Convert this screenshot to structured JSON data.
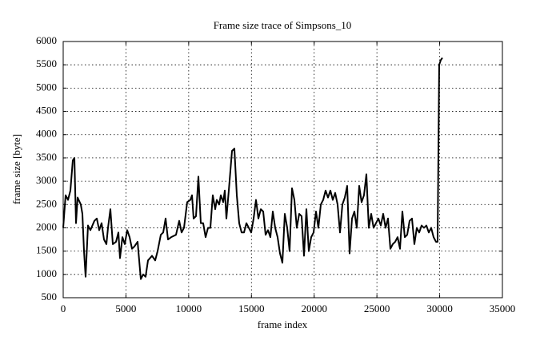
{
  "chart_data": {
    "type": "line",
    "title": "Frame size trace of Simpsons_10",
    "x_label": "frame index",
    "y_label": "frame size [byte]",
    "xlim": [
      0,
      35000
    ],
    "xticks": [
      0,
      5000,
      10000,
      15000,
      20000,
      25000,
      30000,
      35000
    ],
    "ylim": [
      500,
      6000
    ],
    "yticks": [
      500,
      1000,
      1500,
      2000,
      2500,
      3000,
      3500,
      4000,
      4500,
      5000,
      5500,
      6000
    ],
    "grid": true,
    "x": [
      0,
      191,
      383,
      574,
      765,
      893,
      1020,
      1148,
      1403,
      1530,
      1658,
      1785,
      1976,
      2168,
      2486,
      2678,
      2869,
      3060,
      3251,
      3443,
      3570,
      3761,
      3953,
      4208,
      4399,
      4526,
      4718,
      4909,
      5100,
      5291,
      5483,
      5674,
      5929,
      6184,
      6375,
      6566,
      6758,
      7076,
      7331,
      7523,
      7778,
      7969,
      8160,
      8351,
      8606,
      8989,
      9244,
      9435,
      9626,
      9881,
      10136,
      10264,
      10391,
      10583,
      10774,
      10965,
      11156,
      11348,
      11539,
      11730,
      11921,
      12113,
      12240,
      12431,
      12559,
      12750,
      12878,
      13005,
      13196,
      13451,
      13643,
      13834,
      14025,
      14216,
      14408,
      14599,
      14790,
      14981,
      15173,
      15364,
      15555,
      15746,
      15938,
      16129,
      16320,
      16511,
      16703,
      16894,
      17085,
      17276,
      17468,
      17659,
      17850,
      18041,
      18233,
      18424,
      18615,
      18806,
      18998,
      19189,
      19380,
      19571,
      19763,
      19954,
      20145,
      20336,
      20528,
      20719,
      20910,
      21101,
      21293,
      21484,
      21675,
      21866,
      22058,
      22249,
      22440,
      22631,
      22823,
      23014,
      23205,
      23396,
      23588,
      23779,
      23970,
      24161,
      24353,
      24544,
      24735,
      24926,
      25118,
      25309,
      25500,
      25691,
      25883,
      26074,
      26265,
      26456,
      26648,
      26839,
      27030,
      27221,
      27413,
      27604,
      27795,
      27986,
      28178,
      28369,
      28560,
      28751,
      28943,
      29134,
      29325,
      29516,
      29708,
      29835,
      29963,
      30090,
      30218
    ],
    "series": [
      {
        "color": "#000000",
        "values": [
          2000,
          2700,
          2600,
          2800,
          3450,
          3500,
          2100,
          2650,
          2500,
          2300,
          1500,
          950,
          2050,
          1950,
          2150,
          2200,
          1950,
          2100,
          1750,
          1650,
          2000,
          2400,
          1650,
          1700,
          1900,
          1350,
          1800,
          1650,
          1950,
          1800,
          1550,
          1600,
          1700,
          900,
          1000,
          950,
          1300,
          1400,
          1300,
          1500,
          1850,
          1900,
          2200,
          1750,
          1800,
          1850,
          2150,
          1900,
          2000,
          2550,
          2600,
          2700,
          2200,
          2250,
          3100,
          2100,
          2100,
          1800,
          2000,
          2000,
          2700,
          2400,
          2600,
          2500,
          2700,
          2550,
          2800,
          2200,
          2800,
          3650,
          3700,
          2700,
          2100,
          1900,
          1900,
          2100,
          2000,
          1900,
          2200,
          2600,
          2200,
          2400,
          2350,
          1850,
          1950,
          1800,
          2350,
          2000,
          1800,
          1450,
          1250,
          2300,
          2000,
          1500,
          2850,
          2600,
          2000,
          2300,
          2250,
          1400,
          2400,
          1500,
          1800,
          1900,
          2350,
          2000,
          2500,
          2600,
          2800,
          2650,
          2800,
          2600,
          2750,
          2500,
          1900,
          2500,
          2650,
          2900,
          1450,
          2200,
          2350,
          2000,
          2900,
          2550,
          2700,
          3150,
          2000,
          2300,
          2000,
          2100,
          2200,
          2050,
          2300,
          2000,
          2200,
          1550,
          1650,
          1700,
          1800,
          1550,
          2350,
          1800,
          1850,
          2150,
          2200,
          1650,
          2000,
          1900,
          2050,
          2000,
          2050,
          1900,
          2000,
          1800,
          1700,
          1700,
          5500,
          5600,
          5650
        ]
      }
    ]
  }
}
